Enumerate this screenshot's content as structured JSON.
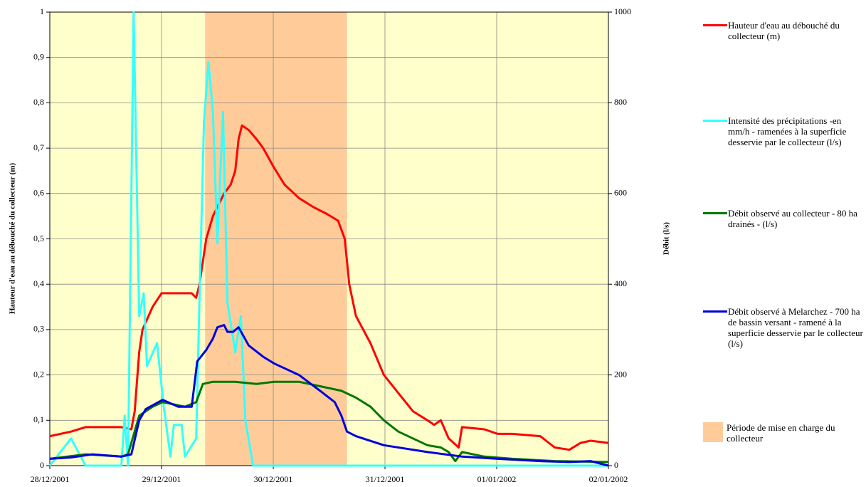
{
  "chart_data": {
    "type": "line",
    "ylabel": "Hauteur d'eau au débouché  du collecteur (m)",
    "y2label": "Débit (l/s)",
    "xlim": [
      0,
      5
    ],
    "xticks": [
      {
        "value": 0,
        "label": "28/12/2001"
      },
      {
        "value": 1,
        "label": "29/12/2001"
      },
      {
        "value": 2,
        "label": "30/12/2001"
      },
      {
        "value": 3,
        "label": "31/12/2001"
      },
      {
        "value": 4,
        "label": "01/01/2002"
      },
      {
        "value": 5,
        "label": "02/01/2002"
      }
    ],
    "ylim": [
      0,
      1
    ],
    "yticks": [
      0,
      {
        "value": 0.1,
        "label": "0,1"
      },
      {
        "value": 0.2,
        "label": "0,2"
      },
      {
        "value": 0.3,
        "label": "0,3"
      },
      {
        "value": 0.4,
        "label": "0,4"
      },
      {
        "value": 0.5,
        "label": "0,5"
      },
      {
        "value": 0.6,
        "label": "0,6"
      },
      {
        "value": 0.7,
        "label": "0,7"
      },
      {
        "value": 0.8,
        "label": "0,8"
      },
      {
        "value": 0.9,
        "label": "0,9"
      },
      1
    ],
    "y2lim": [
      0,
      1000
    ],
    "y2ticks": [
      0,
      200,
      400,
      600,
      800,
      1000
    ],
    "grid": true,
    "background": "#ffffcc",
    "shaded": {
      "name": "Période de mise en charge du collecteur",
      "color": "#ffcc99",
      "x": [
        1.39,
        2.66
      ]
    },
    "series": [
      {
        "name": "Hauteur d'eau au débouché du collecteur (m)",
        "color": "#ff0000",
        "axis": "y",
        "x": [
          0,
          0.19,
          0.32,
          0.51,
          0.64,
          0.73,
          0.76,
          0.8,
          0.83,
          0.92,
          1.0,
          1.27,
          1.31,
          1.34,
          1.4,
          1.46,
          1.56,
          1.62,
          1.66,
          1.69,
          1.72,
          1.78,
          1.85,
          1.91,
          2.0,
          2.1,
          2.23,
          2.36,
          2.48,
          2.58,
          2.64,
          2.68,
          2.74,
          2.87,
          2.99,
          3.12,
          3.25,
          3.38,
          3.44,
          3.5,
          3.57,
          3.66,
          3.69,
          3.89,
          4.01,
          4.14,
          4.39,
          4.52,
          4.65,
          4.75,
          4.84,
          5.0
        ],
        "values": [
          0.065,
          0.075,
          0.085,
          0.085,
          0.085,
          0.08,
          0.12,
          0.25,
          0.3,
          0.35,
          0.38,
          0.38,
          0.37,
          0.4,
          0.5,
          0.55,
          0.6,
          0.62,
          0.65,
          0.72,
          0.75,
          0.74,
          0.72,
          0.7,
          0.66,
          0.62,
          0.59,
          0.57,
          0.555,
          0.54,
          0.5,
          0.4,
          0.33,
          0.27,
          0.2,
          0.16,
          0.12,
          0.1,
          0.09,
          0.1,
          0.06,
          0.04,
          0.085,
          0.08,
          0.07,
          0.07,
          0.065,
          0.04,
          0.035,
          0.05,
          0.055,
          0.05
        ]
      },
      {
        "name": "Intensité des précipitations -en mm/h - ramenées à la superficie desservie par le collecteur (l/s)",
        "color": "#33ffff",
        "axis": "y2",
        "x": [
          0,
          0.19,
          0.32,
          0.64,
          0.67,
          0.7,
          0.75,
          0.8,
          0.84,
          0.87,
          0.96,
          1.02,
          1.08,
          1.11,
          1.18,
          1.21,
          1.31,
          1.34,
          1.38,
          1.42,
          1.46,
          1.5,
          1.55,
          1.59,
          1.66,
          1.71,
          1.75,
          1.82,
          5.0
        ],
        "values": [
          0,
          60,
          0,
          0,
          110,
          0,
          1000,
          330,
          380,
          220,
          270,
          130,
          20,
          90,
          90,
          20,
          60,
          370,
          760,
          890,
          780,
          490,
          780,
          360,
          250,
          330,
          100,
          0,
          0
        ]
      },
      {
        "name": "Débit observé au collecteur - 80 ha drainés - (l/s)",
        "color": "#007700",
        "axis": "y2",
        "x": [
          0,
          0.32,
          0.64,
          0.7,
          0.8,
          0.92,
          1.01,
          1.21,
          1.31,
          1.37,
          1.46,
          1.66,
          1.85,
          2.01,
          2.23,
          2.42,
          2.61,
          2.74,
          2.87,
          2.99,
          3.12,
          3.25,
          3.38,
          3.5,
          3.57,
          3.63,
          3.69,
          3.89,
          4.14,
          4.52,
          5.0
        ],
        "values": [
          15,
          25,
          20,
          25,
          110,
          130,
          140,
          130,
          140,
          180,
          185,
          185,
          180,
          185,
          185,
          175,
          165,
          150,
          130,
          100,
          75,
          60,
          45,
          40,
          30,
          10,
          30,
          20,
          15,
          10,
          8
        ]
      },
      {
        "name": "Débit observé à Melarchez - 700 ha de bassin versant - ramené à la superficie desservie par le collecteur (l/s)",
        "color": "#0000dd",
        "axis": "y2",
        "x": [
          0,
          0.19,
          0.38,
          0.64,
          0.73,
          0.8,
          0.86,
          1.01,
          1.15,
          1.27,
          1.32,
          1.4,
          1.46,
          1.5,
          1.56,
          1.59,
          1.64,
          1.69,
          1.78,
          1.91,
          2.01,
          2.23,
          2.42,
          2.55,
          2.61,
          2.66,
          2.74,
          2.99,
          3.38,
          3.69,
          4.01,
          4.39,
          4.65,
          4.84,
          5.0
        ],
        "values": [
          15,
          18,
          25,
          20,
          25,
          100,
          125,
          145,
          130,
          130,
          230,
          255,
          280,
          305,
          310,
          295,
          295,
          305,
          265,
          240,
          225,
          200,
          165,
          140,
          110,
          75,
          65,
          45,
          30,
          20,
          15,
          10,
          8,
          10,
          0
        ]
      }
    ]
  }
}
